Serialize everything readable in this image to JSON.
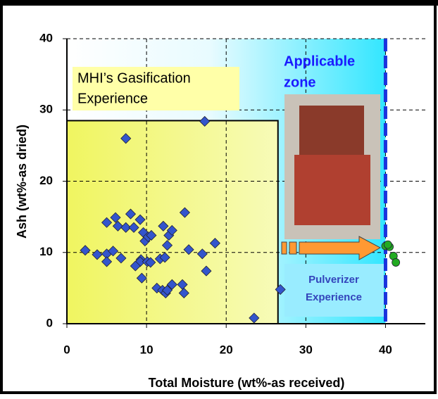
{
  "chart_data": {
    "type": "scatter",
    "x_label": "Total Moisture (wt%-as received)",
    "y_label": "Ash (wt%-as dried)",
    "annotations": [
      "MHI’s Gasification",
      "Experience",
      "Applicable",
      "zone",
      "Pulverizer",
      "Experience"
    ],
    "xlim": [
      0,
      45
    ],
    "xticks": [
      0,
      10,
      20,
      30,
      40
    ],
    "ylim": [
      0,
      40
    ],
    "yticks": [
      0,
      10,
      20,
      30,
      40
    ],
    "grid": true,
    "regions": [
      {
        "x": [
          0,
          26.5
        ],
        "y": [
          0,
          28.5
        ]
      }
    ],
    "vline": 40,
    "series": [
      {
        "color": "#3355cc",
        "marker": "diamond",
        "x": [
          2.3,
          3.8,
          5.0,
          5.8,
          5.0,
          6.8,
          5.0,
          6.1,
          6.4,
          7.4,
          8.0,
          8.4,
          9.2,
          9.6,
          9.8,
          10.2,
          10.6,
          9.3,
          9.2,
          8.6,
          10.1,
          10.5,
          11.7,
          12.3,
          12.1,
          12.8,
          12.6,
          13.2,
          14.8,
          15.3,
          17.3,
          7.4,
          9.4,
          11.3,
          12.0,
          12.4,
          12.6,
          13.2,
          14.5,
          14.7,
          17.0,
          17.5,
          18.6,
          23.5,
          26.8
        ],
        "y": [
          10.3,
          9.7,
          9.8,
          10.2,
          8.7,
          9.2,
          14.2,
          14.9,
          13.7,
          13.5,
          15.4,
          13.5,
          14.6,
          12.8,
          11.6,
          12.2,
          12.4,
          9.0,
          8.7,
          8.1,
          8.7,
          8.6,
          9.1,
          9.3,
          13.7,
          12.4,
          11.0,
          13.1,
          15.6,
          10.4,
          28.4,
          26.0,
          6.4,
          5.0,
          4.7,
          4.3,
          4.7,
          5.5,
          5.5,
          4.3,
          9.8,
          7.4,
          11.3,
          0.8,
          4.8
        ]
      },
      {
        "color": "#22aa22",
        "marker": "circle",
        "x": [
          40.0,
          40.5,
          41.0,
          41.3,
          40.3
        ],
        "y": [
          10.9,
          10.8,
          9.5,
          8.6,
          11.1
        ]
      }
    ]
  }
}
